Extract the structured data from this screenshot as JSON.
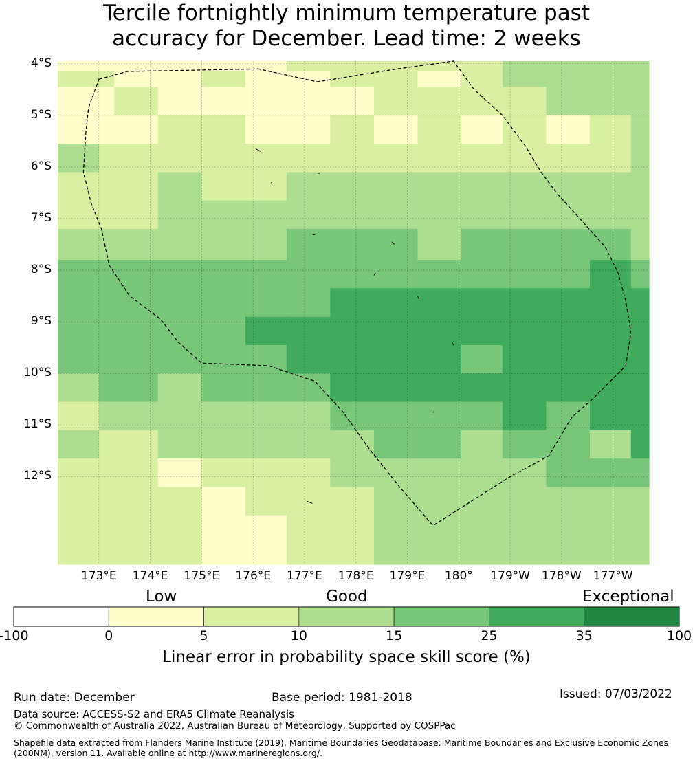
{
  "title": {
    "line1": "Tercile fortnightly minimum temperature past",
    "line2": "accuracy for December. Lead time: 2 weeks"
  },
  "map": {
    "lon_range": [
      172.2,
      183.7
    ],
    "lat_range": [
      -13.7,
      -3.95
    ],
    "lat_ticks": [
      {
        "value": -4,
        "label": "4°S"
      },
      {
        "value": -5,
        "label": "5°S"
      },
      {
        "value": -6,
        "label": "6°S"
      },
      {
        "value": -7,
        "label": "7°S"
      },
      {
        "value": -8,
        "label": "8°S"
      },
      {
        "value": -9,
        "label": "9°S"
      },
      {
        "value": -10,
        "label": "10°S"
      },
      {
        "value": -11,
        "label": "11°S"
      },
      {
        "value": -12,
        "label": "12°S"
      }
    ],
    "lon_ticks": [
      {
        "value": 173,
        "label": "173°E"
      },
      {
        "value": 174,
        "label": "174°E"
      },
      {
        "value": 175,
        "label": "175°E"
      },
      {
        "value": 176,
        "label": "176°E"
      },
      {
        "value": 177,
        "label": "177°E"
      },
      {
        "value": 178,
        "label": "178°E"
      },
      {
        "value": 179,
        "label": "179°E"
      },
      {
        "value": 180,
        "label": "180°"
      },
      {
        "value": 181,
        "label": "179°W"
      },
      {
        "value": 182,
        "label": "178°W"
      },
      {
        "value": 183,
        "label": "177°W"
      }
    ],
    "grid": {
      "lon_edges": [
        172.2,
        173.0,
        173.3,
        174.15,
        175.0,
        175.85,
        176.65,
        177.5,
        178.35,
        179.2,
        180.05,
        180.85,
        181.7,
        182.55,
        183.35,
        183.7
      ],
      "lat_edges": [
        -3.95,
        -4.15,
        -4.45,
        -5.0,
        -5.55,
        -6.1,
        -6.65,
        -7.2,
        -7.8,
        -8.35,
        -8.9,
        -9.45,
        -10.0,
        -10.55,
        -11.1,
        -11.65,
        -12.2,
        -12.75,
        -13.3,
        -13.7
      ],
      "row_categories": [
        [
          1,
          1,
          1,
          1,
          1,
          1,
          2,
          2,
          2,
          2,
          2,
          3,
          3,
          3,
          3
        ],
        [
          2,
          2,
          1,
          1,
          2,
          1,
          1,
          2,
          2,
          1,
          2,
          3,
          3,
          3,
          3
        ],
        [
          1,
          1,
          2,
          1,
          1,
          1,
          1,
          1,
          2,
          2,
          2,
          2,
          3,
          3,
          3
        ],
        [
          1,
          1,
          1,
          2,
          2,
          1,
          1,
          2,
          1,
          2,
          1,
          2,
          1,
          2,
          3
        ],
        [
          3,
          2,
          2,
          2,
          2,
          2,
          2,
          2,
          2,
          2,
          2,
          2,
          2,
          2,
          3
        ],
        [
          2,
          2,
          2,
          3,
          2,
          2,
          3,
          3,
          3,
          3,
          3,
          3,
          3,
          3,
          3
        ],
        [
          2,
          2,
          2,
          3,
          3,
          3,
          3,
          3,
          3,
          3,
          3,
          3,
          3,
          3,
          3
        ],
        [
          3,
          3,
          3,
          3,
          3,
          3,
          4,
          4,
          4,
          3,
          4,
          4,
          4,
          4,
          3
        ],
        [
          4,
          4,
          4,
          4,
          4,
          4,
          4,
          4,
          4,
          4,
          4,
          4,
          4,
          5,
          4
        ],
        [
          4,
          4,
          4,
          4,
          4,
          4,
          4,
          5,
          5,
          5,
          5,
          5,
          5,
          5,
          5
        ],
        [
          4,
          4,
          4,
          4,
          4,
          5,
          5,
          5,
          5,
          5,
          5,
          5,
          5,
          5,
          5
        ],
        [
          4,
          4,
          4,
          4,
          4,
          4,
          5,
          5,
          5,
          5,
          4,
          5,
          5,
          5,
          5
        ],
        [
          3,
          4,
          4,
          3,
          4,
          4,
          4,
          5,
          5,
          5,
          5,
          5,
          5,
          5,
          5
        ],
        [
          2,
          3,
          3,
          3,
          3,
          3,
          3,
          4,
          4,
          4,
          4,
          5,
          4,
          5,
          5
        ],
        [
          3,
          2,
          2,
          3,
          3,
          3,
          3,
          3,
          4,
          4,
          3,
          4,
          4,
          3,
          5
        ],
        [
          2,
          2,
          2,
          1,
          2,
          2,
          2,
          3,
          3,
          3,
          3,
          3,
          4,
          4,
          4
        ],
        [
          2,
          2,
          2,
          2,
          1,
          2,
          2,
          2,
          3,
          3,
          3,
          3,
          3,
          3,
          3
        ],
        [
          2,
          2,
          2,
          2,
          1,
          1,
          2,
          2,
          3,
          3,
          3,
          3,
          3,
          3,
          3
        ],
        [
          2,
          2,
          2,
          2,
          1,
          1,
          2,
          2,
          3,
          3,
          3,
          3,
          3,
          3,
          3
        ]
      ]
    },
    "eez_boundary": [
      [
        173.0,
        -4.3
      ],
      [
        173.55,
        -4.15
      ],
      [
        176.1,
        -4.1
      ],
      [
        177.25,
        -4.35
      ],
      [
        178.8,
        -4.1
      ],
      [
        179.9,
        -3.95
      ],
      [
        180.3,
        -4.5
      ],
      [
        180.85,
        -5.0
      ],
      [
        181.3,
        -5.6
      ],
      [
        181.6,
        -6.1
      ],
      [
        181.9,
        -6.5
      ],
      [
        182.4,
        -7.05
      ],
      [
        182.85,
        -7.55
      ],
      [
        183.1,
        -8.05
      ],
      [
        183.25,
        -8.6
      ],
      [
        183.35,
        -9.2
      ],
      [
        183.25,
        -9.85
      ],
      [
        182.6,
        -10.5
      ],
      [
        182.2,
        -10.85
      ],
      [
        181.75,
        -11.6
      ],
      [
        181.0,
        -12.0
      ],
      [
        179.5,
        -12.95
      ],
      [
        178.85,
        -12.2
      ],
      [
        178.25,
        -11.45
      ],
      [
        177.75,
        -10.75
      ],
      [
        177.2,
        -10.15
      ],
      [
        176.3,
        -9.85
      ],
      [
        175.0,
        -9.8
      ],
      [
        174.55,
        -9.4
      ],
      [
        174.2,
        -8.95
      ],
      [
        173.6,
        -8.5
      ],
      [
        173.2,
        -7.9
      ],
      [
        173.05,
        -7.2
      ],
      [
        172.85,
        -6.7
      ],
      [
        172.7,
        -6.1
      ],
      [
        172.75,
        -5.3
      ],
      [
        172.8,
        -4.85
      ],
      [
        173.0,
        -4.3
      ]
    ],
    "islands": [
      [
        [
          176.05,
          -5.65
        ],
        [
          176.15,
          -5.7
        ]
      ],
      [
        [
          177.25,
          -6.12
        ],
        [
          177.3,
          -6.12
        ]
      ],
      [
        [
          176.35,
          -6.3
        ],
        [
          176.37,
          -6.32
        ]
      ],
      [
        [
          177.15,
          -7.3
        ],
        [
          177.2,
          -7.32
        ]
      ],
      [
        [
          178.7,
          -7.45
        ],
        [
          178.75,
          -7.5
        ]
      ],
      [
        [
          178.38,
          -8.05
        ],
        [
          178.35,
          -8.1
        ]
      ],
      [
        [
          179.2,
          -8.5
        ],
        [
          179.22,
          -8.55
        ]
      ],
      [
        [
          179.87,
          -9.4
        ],
        [
          179.9,
          -9.45
        ]
      ],
      [
        [
          179.5,
          -10.75
        ],
        [
          179.52,
          -10.76
        ]
      ],
      [
        [
          177.05,
          -12.48
        ],
        [
          177.15,
          -12.52
        ]
      ]
    ]
  },
  "categories": {
    "low": "Low",
    "good": "Good",
    "exceptional": "Exceptional"
  },
  "colorbar": {
    "title": "Linear error in probability space skill score (%)",
    "tick_labels": [
      "-100",
      "0",
      "5",
      "10",
      "15",
      "25",
      "35",
      "100"
    ],
    "colors": [
      "#ffffff",
      "#ffffcc",
      "#d9f0a3",
      "#addd8e",
      "#78c679",
      "#41ab5d",
      "#238443"
    ]
  },
  "footer": {
    "run_date": "Run date: December",
    "base_period": "Base period: 1981-2018",
    "issued": "Issued: 07/03/2022",
    "data_source": "Data source: ACCESS-S2 and ERA5 Climate Reanalysis",
    "copyright": "© Commonwealth of Australia 2022, Australian Bureau of Meteorology, Supported by COSPPac",
    "shapefile": "Shapefile data extracted from Flanders Marine Institute (2019), Maritime Boundaries Geodatabase: Maritime Boundaries and Exclusive Economic Zones (200NM), version 11. Available online at http://www.marineregions.org/."
  }
}
